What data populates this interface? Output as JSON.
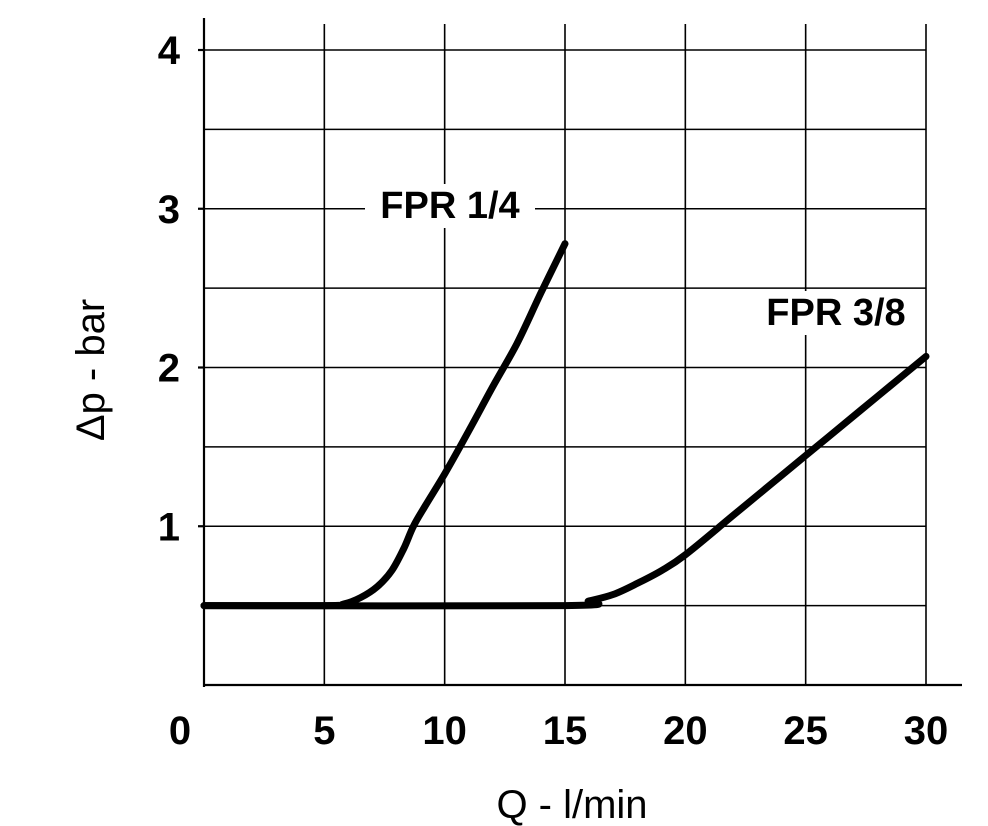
{
  "chart_data": {
    "type": "line",
    "xlabel": "Q - l/min",
    "ylabel": "Δp - bar",
    "xlim": [
      0,
      30
    ],
    "ylim": [
      0,
      4
    ],
    "xticks": [
      "0",
      "5",
      "10",
      "15",
      "20",
      "25",
      "30"
    ],
    "yticks": [
      "1",
      "2",
      "3",
      "4"
    ],
    "grid": true,
    "series": [
      {
        "name": "FPR 1/4",
        "x": [
          0,
          5,
          5.8,
          6.5,
          7.2,
          7.8,
          8.3,
          8.7,
          9.2,
          10,
          11,
          12,
          13,
          14,
          15
        ],
        "y": [
          0.5,
          0.5,
          0.51,
          0.55,
          0.62,
          0.72,
          0.86,
          1.0,
          1.13,
          1.33,
          1.6,
          1.88,
          2.15,
          2.47,
          2.78
        ]
      },
      {
        "name": "FPR 3/8",
        "x": [
          0,
          15,
          16,
          17,
          18,
          19,
          20,
          22,
          24,
          26,
          28,
          30
        ],
        "y": [
          0.5,
          0.5,
          0.53,
          0.57,
          0.64,
          0.72,
          0.82,
          1.07,
          1.32,
          1.57,
          1.82,
          2.07
        ]
      }
    ]
  }
}
